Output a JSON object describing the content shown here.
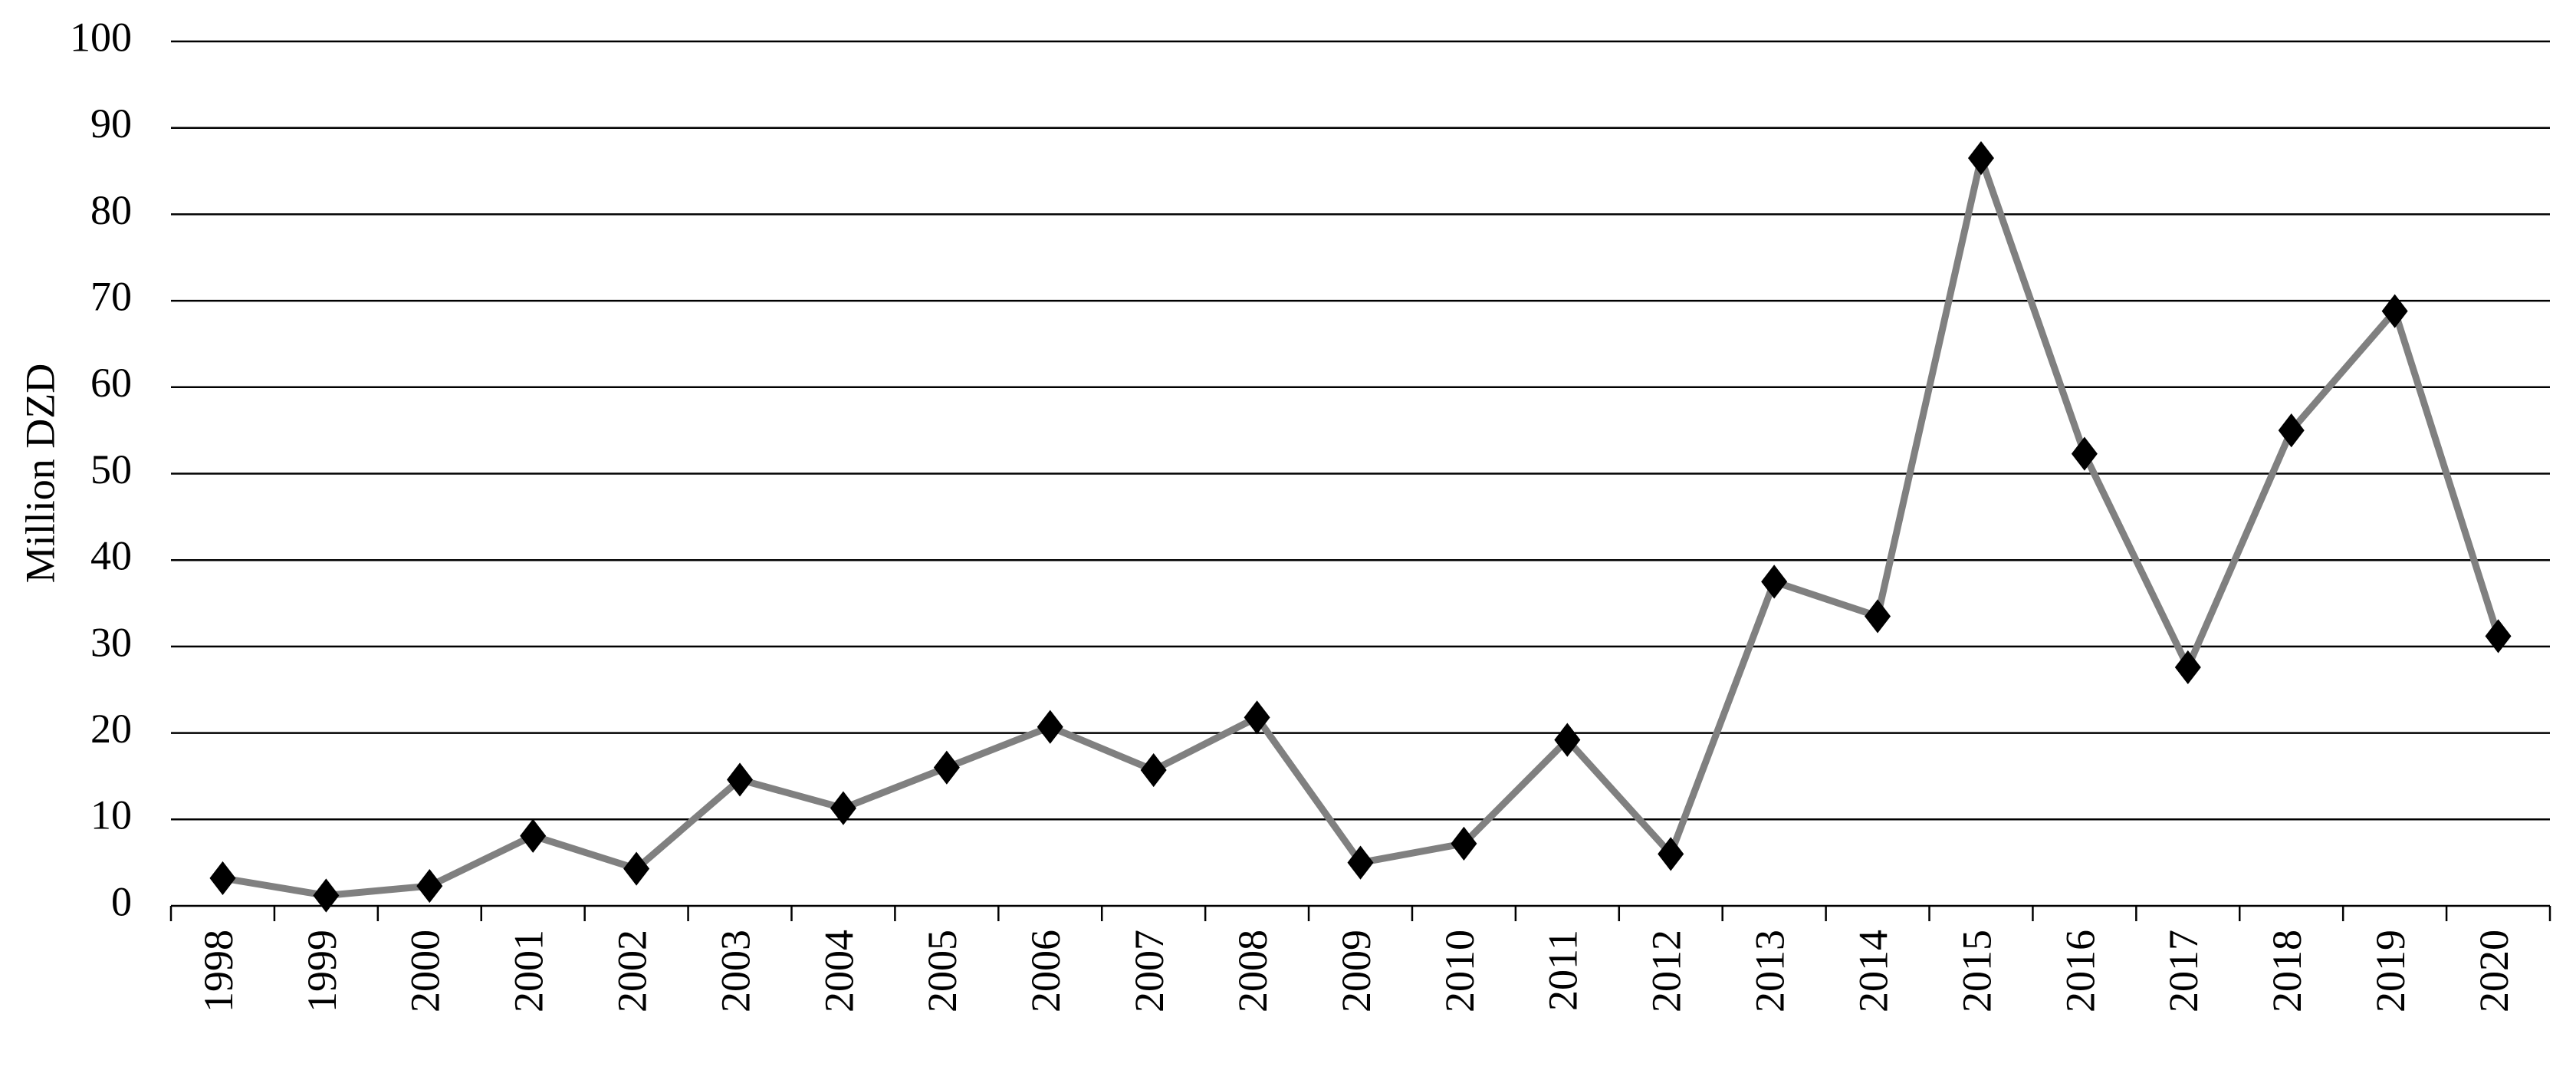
{
  "chart_data": {
    "type": "line",
    "y_label": "Million DZD",
    "categories": [
      "1998",
      "1999",
      "2000",
      "2001",
      "2002",
      "2003",
      "2004",
      "2005",
      "2006",
      "2007",
      "2008",
      "2009",
      "2010",
      "2011",
      "2012",
      "2013",
      "2014",
      "2015",
      "2016",
      "2017",
      "2018",
      "2019",
      "2020"
    ],
    "values": [
      3.2,
      1.2,
      2.3,
      8.1,
      4.3,
      14.6,
      11.3,
      16,
      20.7,
      15.7,
      21.8,
      5,
      7.2,
      19.2,
      6,
      37.5,
      33.5,
      86.5,
      52.3,
      27.6,
      55,
      68.8,
      31.2
    ],
    "color": "#808080",
    "marker_color": "#000000",
    "ylim": [
      0,
      100
    ],
    "yticks": [
      0,
      10,
      20,
      30,
      40,
      50,
      60,
      70,
      80,
      90,
      100
    ],
    "grid": true
  }
}
